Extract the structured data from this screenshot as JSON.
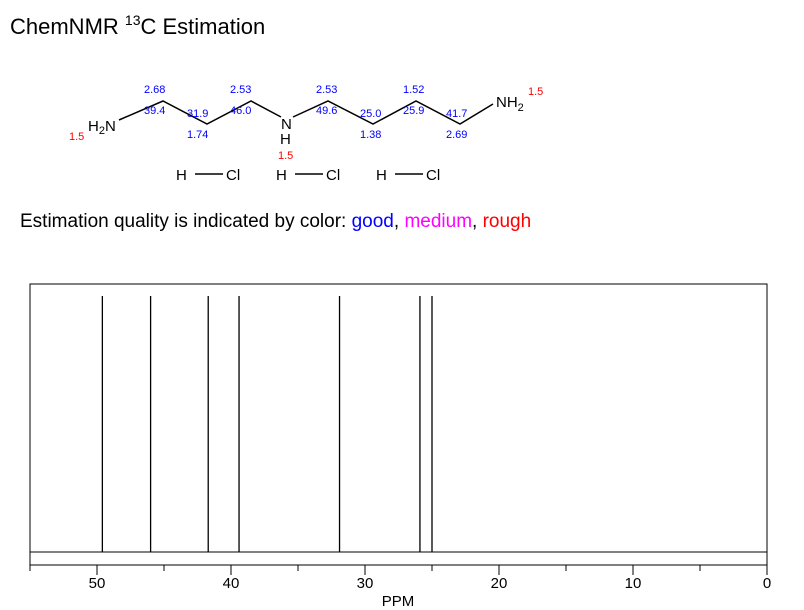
{
  "title": {
    "prefix": "ChemNMR ",
    "isotope": "13",
    "suffix": "C Estimation"
  },
  "molecule": {
    "left_group": {
      "main": "H",
      "sub": "2",
      "tail": "N",
      "shift": "1.5"
    },
    "right_group": {
      "main": "NH",
      "sub": "2",
      "shift": "1.5"
    },
    "center_n": {
      "n": "N",
      "h": "H",
      "shift": "1.5"
    },
    "carbons": [
      {
        "c13": "39.4",
        "h1": "2.68"
      },
      {
        "c13": "31.9",
        "h1": "1.74"
      },
      {
        "c13": "46.0",
        "h1": "2.53"
      },
      {
        "c13": "49.6",
        "h1": "2.53"
      },
      {
        "c13": "25.0",
        "h1": "1.38"
      },
      {
        "c13": "25.9",
        "h1": "1.52"
      },
      {
        "c13": "41.7",
        "h1": "2.69"
      }
    ],
    "salts": [
      {
        "h": "H",
        "cl": "Cl"
      },
      {
        "h": "H",
        "cl": "Cl"
      },
      {
        "h": "H",
        "cl": "Cl"
      }
    ]
  },
  "quality": {
    "prefix": "Estimation quality is indicated by color: ",
    "good": "good",
    "sep1": ", ",
    "medium": "medium",
    "sep2": ", ",
    "rough": "rough"
  },
  "colors": {
    "good": "#0000ff",
    "medium": "#ff00ff",
    "rough": "#ff0000"
  },
  "chart_data": {
    "type": "bar",
    "xlabel": "PPM",
    "xlim": [
      55,
      0
    ],
    "x_reversed": true,
    "ticks": [
      50,
      40,
      30,
      20,
      10,
      0
    ],
    "tick_labels": [
      "50",
      "40",
      "30",
      "20",
      "10",
      "0"
    ],
    "peaks": [
      49.6,
      46.0,
      41.7,
      39.4,
      31.9,
      25.9,
      25.0
    ]
  }
}
